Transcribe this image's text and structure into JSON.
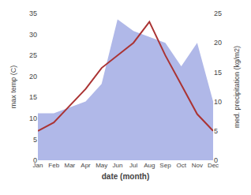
{
  "chart_data": {
    "type": "line",
    "xlabel": "date (month)",
    "ylabel": "max temp (C)",
    "y2label": "med. precipitation (kg/m2)",
    "categories": [
      "Jan",
      "Feb",
      "Mar",
      "Apr",
      "May",
      "Jun",
      "Jul",
      "Aug",
      "Sep",
      "Oct",
      "Nov",
      "Dec"
    ],
    "series": [
      {
        "type": "area",
        "axis": "y2",
        "color": "#b0b8e8",
        "values": [
          8,
          8,
          9,
          10,
          13,
          24,
          22,
          21,
          20,
          16,
          20,
          10
        ]
      },
      {
        "type": "line",
        "color": "#aa3333",
        "values": [
          7,
          9,
          13,
          17,
          22,
          25,
          28,
          33,
          25,
          18,
          11,
          7
        ]
      }
    ],
    "ylim": [
      0,
      35
    ],
    "yticks": [
      0,
      5,
      10,
      15,
      20,
      25,
      30,
      35
    ],
    "y2lim": [
      0,
      25
    ],
    "y2ticks": [
      0,
      5,
      10,
      15,
      20,
      25
    ],
    "grid": false
  }
}
